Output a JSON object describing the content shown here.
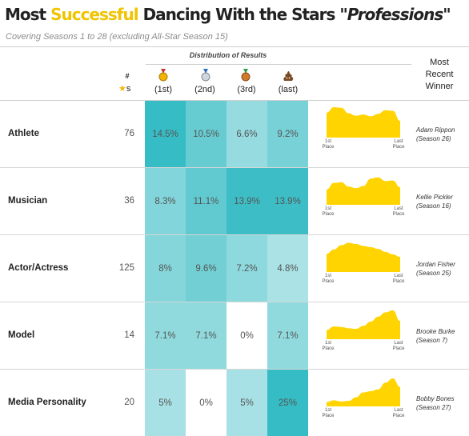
{
  "title": {
    "prefix": "Most ",
    "highlight": "Successful",
    "middle": " Dancing With the Stars ",
    "emph": "\"Professions\""
  },
  "subtitle": "Covering Seasons 1 to 28 (excluding All-Star Season 15)",
  "header": {
    "distribution": "Distribution of Results",
    "count_hash": "#",
    "count_s": "s",
    "recent": [
      "Most",
      "Recent",
      "Winner"
    ],
    "columns": [
      "(1st)",
      "(2nd)",
      "(3rd)",
      "(last)"
    ]
  },
  "colors": {
    "accent": "#f0c400",
    "sparkline": "#ffd400",
    "teal_dark": "#36bcc4",
    "teal_light": "#e9f7f8"
  },
  "icons": [
    "gold-medal-icon",
    "silver-medal-icon",
    "bronze-medal-icon",
    "poop-icon",
    "star-icon"
  ],
  "spark_caption": {
    "first": [
      "1st",
      "Place"
    ],
    "last": [
      "Last",
      "Place"
    ]
  },
  "chart_data": {
    "type": "table",
    "title": "Most Successful Dancing With the Stars \"Professions\"",
    "columns": [
      "#",
      "(1st)",
      "(2nd)",
      "(3rd)",
      "(last)",
      "Most Recent Winner"
    ],
    "rows": [
      {
        "profession": "Athlete",
        "count": 76,
        "values": [
          "14.5%",
          "10.5%",
          "6.6%",
          "9.2%"
        ],
        "num": [
          14.5,
          10.5,
          6.6,
          9.2
        ],
        "winner": [
          "Adam Rippon",
          "(Season 26)"
        ],
        "dist": [
          0.82,
          1.0,
          0.98,
          0.8,
          0.72,
          0.76,
          0.7,
          0.78,
          0.9,
          0.88,
          0.55
        ]
      },
      {
        "profession": "Musician",
        "count": 36,
        "values": [
          "8.3%",
          "11.1%",
          "13.9%",
          "13.9%"
        ],
        "num": [
          8.3,
          11.1,
          13.9,
          13.9
        ],
        "winner": [
          "Kellie Pickler",
          "(Season 16)"
        ],
        "dist": [
          0.5,
          0.72,
          0.74,
          0.6,
          0.55,
          0.62,
          0.86,
          0.9,
          0.78,
          0.8,
          0.58
        ]
      },
      {
        "profession": "Actor/Actress",
        "count": 125,
        "values": [
          "8%",
          "9.6%",
          "7.2%",
          "4.8%"
        ],
        "num": [
          8,
          9.6,
          7.2,
          4.8
        ],
        "winner": [
          "Jordan Fisher",
          "(Season 25)"
        ],
        "dist": [
          0.6,
          0.74,
          0.88,
          0.96,
          0.92,
          0.86,
          0.82,
          0.76,
          0.66,
          0.58,
          0.5
        ]
      },
      {
        "profession": "Model",
        "count": 14,
        "values": [
          "7.1%",
          "7.1%",
          "0%",
          "7.1%"
        ],
        "num": [
          7.1,
          7.1,
          0,
          7.1
        ],
        "winner": [
          "Brooke Burke",
          "(Season 7)"
        ],
        "dist": [
          0.3,
          0.42,
          0.4,
          0.36,
          0.34,
          0.44,
          0.58,
          0.74,
          0.88,
          0.95,
          0.6
        ]
      },
      {
        "profession": "Media Personality",
        "count": 20,
        "values": [
          "5%",
          "0%",
          "5%",
          "25%"
        ],
        "num": [
          5,
          0,
          5,
          25
        ],
        "winner": [
          "Bobby Bones",
          "(Season 27)"
        ],
        "dist": [
          0.14,
          0.2,
          0.16,
          0.18,
          0.3,
          0.46,
          0.5,
          0.56,
          0.78,
          0.92,
          0.64
        ]
      }
    ]
  }
}
